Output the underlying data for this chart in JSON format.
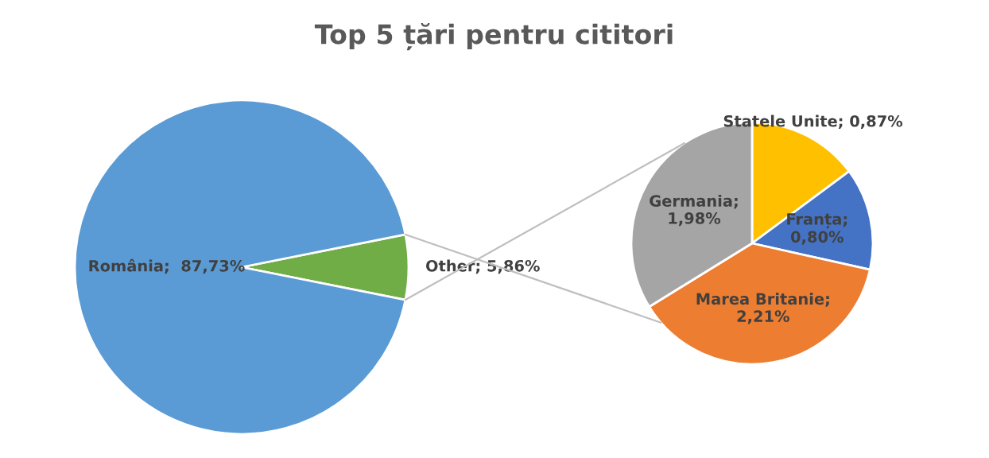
{
  "chart_data": [
    {
      "type": "pie",
      "title": "Top 5 țări pentru cititori",
      "categories": [
        "Other",
        "România"
      ],
      "values": [
        5.86,
        87.73
      ],
      "colors": [
        "#70ad47",
        "#5b9bd5"
      ],
      "value_labels": [
        "; 5,86%",
        ";  87,73%"
      ]
    },
    {
      "type": "pie",
      "categories": [
        "Statele Unite",
        "Franța",
        "Marea Britanie",
        "Germania"
      ],
      "values": [
        0.87,
        0.8,
        2.21,
        1.98
      ],
      "colors": [
        "#ffc000",
        "#4472c4",
        "#ed7d31",
        "#a5a5a5"
      ],
      "value_labels": [
        "; 0,87%",
        ";\n0,80%",
        ";\n2,21%",
        ";\n1,98%"
      ]
    }
  ]
}
